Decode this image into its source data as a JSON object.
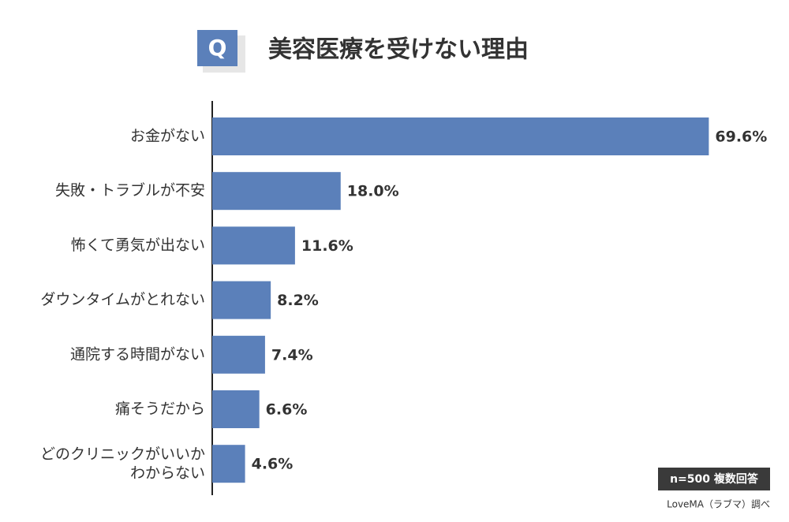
{
  "badge": "Q",
  "note": "n=500 複数回答",
  "source": "LoveMA（ラブマ）調べ",
  "chart_data": {
    "type": "bar",
    "orientation": "horizontal",
    "title": "美容医療を受けない理由",
    "categories": [
      "お金がない",
      "失敗・トラブルが不安",
      "怖くて勇気が出ない",
      "ダウンタイムがとれない",
      "通院する時間がない",
      "痛そうだから",
      "どのクリニックがいいか\nわからない"
    ],
    "values": [
      69.6,
      18.0,
      11.6,
      8.2,
      7.4,
      6.6,
      4.6
    ],
    "value_labels": [
      "69.6%",
      "18.0%",
      "11.6%",
      "8.2%",
      "7.4%",
      "6.6%",
      "4.6%"
    ],
    "color": "#5b80ba",
    "xlim": [
      0,
      70
    ]
  }
}
